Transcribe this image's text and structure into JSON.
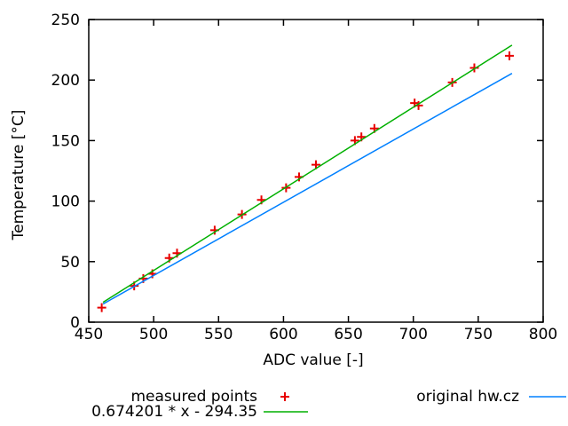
{
  "chart_data": {
    "type": "scatter",
    "title": "",
    "xlabel": "ADC value [-]",
    "ylabel": "Temperature [°C]",
    "xlim": [
      450,
      800
    ],
    "ylim": [
      0,
      250
    ],
    "xticks": [
      450,
      500,
      550,
      600,
      650,
      700,
      750,
      800
    ],
    "yticks": [
      0,
      50,
      100,
      150,
      200,
      250
    ],
    "grid": false,
    "legend_position": "below-plot",
    "background_color": "#ffffff",
    "axis_color": "#000000",
    "series": [
      {
        "name": "measured points",
        "type": "scatter",
        "marker": "plus",
        "color": "#e80000",
        "points": [
          [
            460,
            12
          ],
          [
            485,
            30
          ],
          [
            492,
            36
          ],
          [
            499,
            40
          ],
          [
            512,
            53
          ],
          [
            518,
            57
          ],
          [
            547,
            76
          ],
          [
            568,
            89
          ],
          [
            583,
            101
          ],
          [
            602,
            111
          ],
          [
            612,
            120
          ],
          [
            625,
            130
          ],
          [
            655,
            150
          ],
          [
            660,
            153
          ],
          [
            670,
            160
          ],
          [
            701,
            181
          ],
          [
            704,
            179
          ],
          [
            730,
            198
          ],
          [
            747,
            210
          ],
          [
            774,
            220
          ]
        ]
      },
      {
        "name": "0.674201 * x - 294.35",
        "type": "line",
        "color": "#00b000",
        "points": [
          [
            461,
            16.4
          ],
          [
            776,
            228.8
          ]
        ]
      },
      {
        "name": "original hw.cz",
        "type": "line",
        "color": "#0080ff",
        "points": [
          [
            461,
            15.0
          ],
          [
            776,
            205.5
          ]
        ]
      }
    ]
  }
}
